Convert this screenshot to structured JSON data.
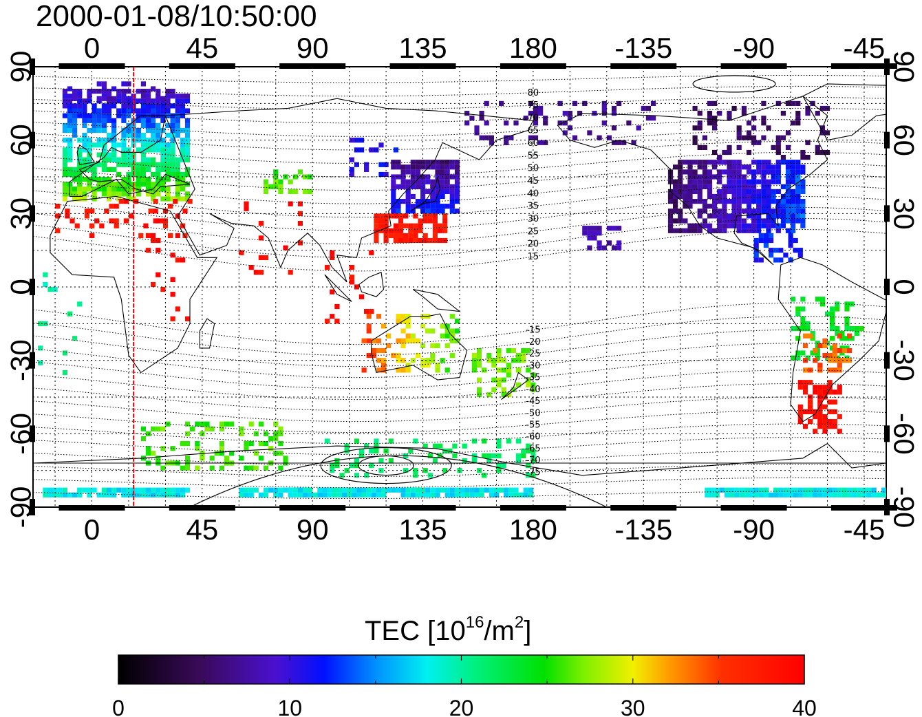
{
  "timestamp": "2000-01-08/10:50:00",
  "colorbar": {
    "title_main": "TEC  [10",
    "title_sup": "16",
    "title_unit": "/m",
    "title_sup2": "2",
    "title_close": "]",
    "ticks": [
      "0",
      "10",
      "20",
      "30",
      "40"
    ],
    "vmin": 0,
    "vmax": 40
  },
  "map": {
    "lon_ticks": [
      "0",
      "45",
      "90",
      "135",
      "180",
      "-135",
      "-90",
      "-45"
    ],
    "lat_ticks": [
      "90",
      "60",
      "30",
      "0",
      "-30",
      "-60",
      "-90"
    ],
    "lon_values": [
      0,
      45,
      90,
      135,
      180,
      225,
      270,
      315
    ],
    "lat_values": [
      90,
      60,
      30,
      0,
      -30,
      -60,
      -90
    ],
    "lon_range": [
      -24,
      324
    ],
    "lat_range": [
      -90,
      90
    ],
    "marker_lon": 17,
    "marker_color": "#ff0000"
  },
  "magnetic_latitude_labels": {
    "north": [
      "80",
      "75",
      "70",
      "65",
      "60",
      "55",
      "50",
      "45",
      "40",
      "35",
      "30",
      "25",
      "20",
      "15"
    ],
    "south": [
      "-15",
      "-20",
      "-25",
      "-30",
      "-35",
      "-40",
      "-45",
      "-50",
      "-55",
      "-60",
      "-65",
      "-70",
      "-75"
    ]
  }
}
